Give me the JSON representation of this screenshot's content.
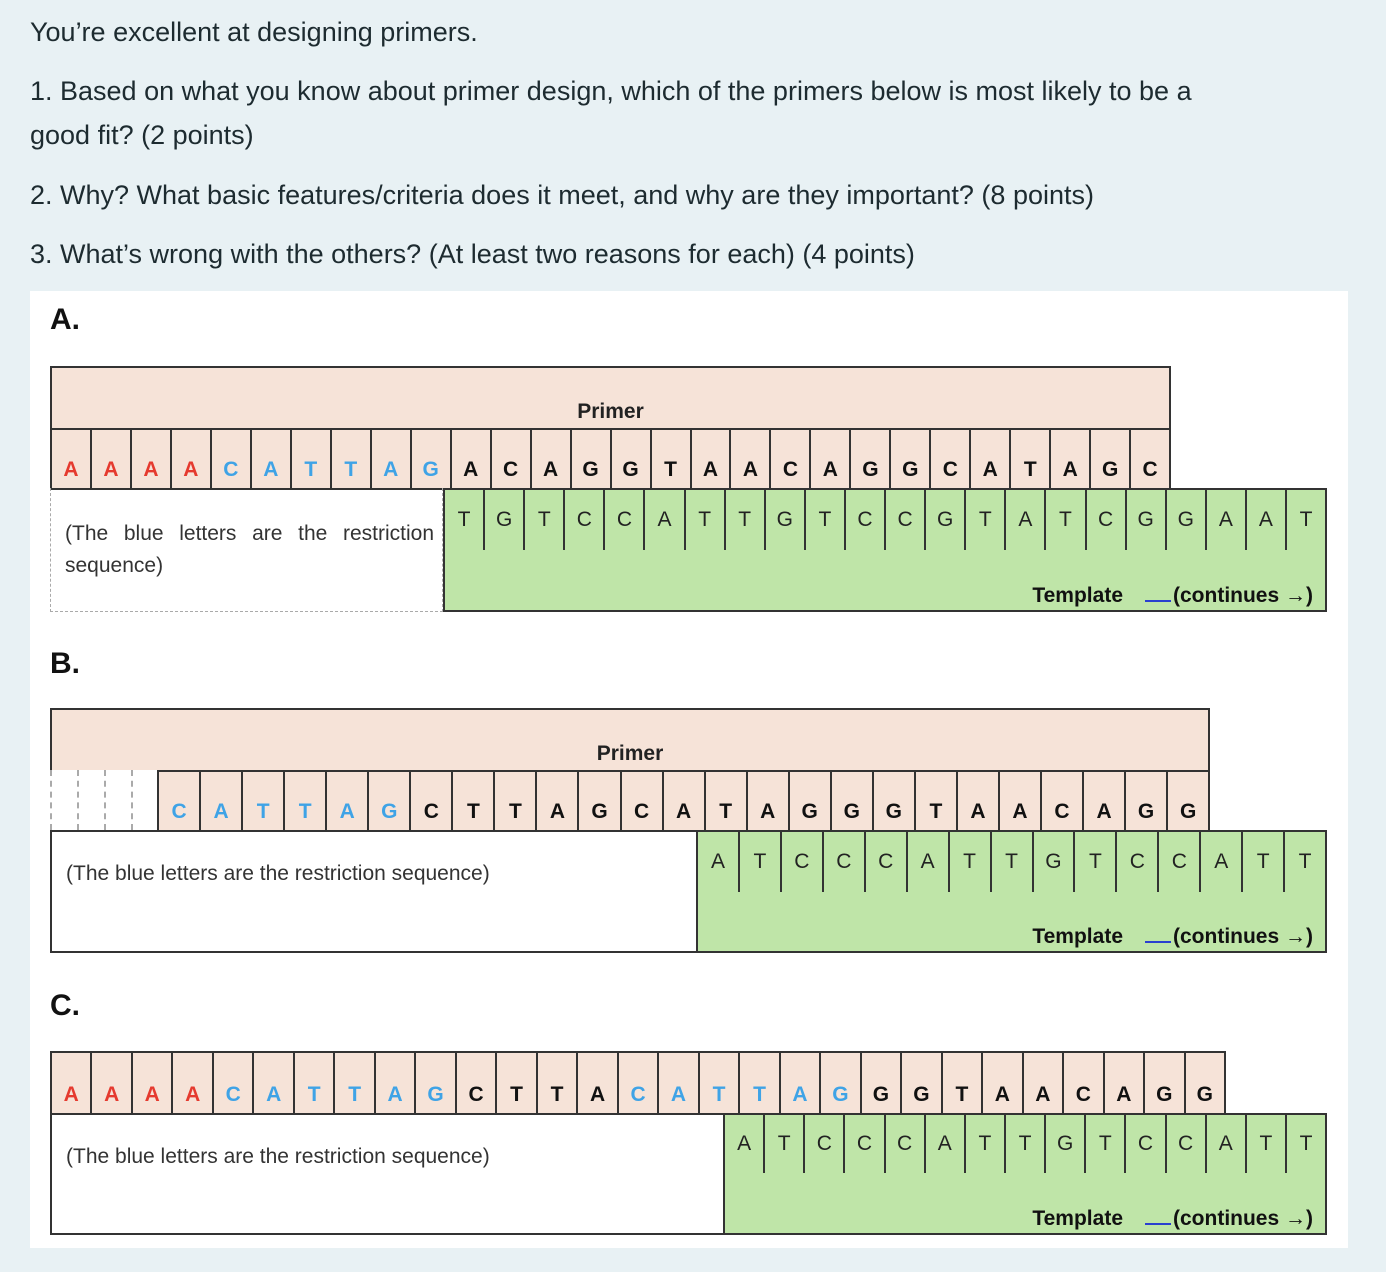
{
  "questions": {
    "intro": "You’re excellent at designing primers.",
    "q1_line1": "1. Based on what you know about primer design, which of the primers below is most likely to be a",
    "q1_line2": "good fit? (2 points)",
    "q2": "2. Why? What basic features/criteria does it meet, and why are they important? (8 points)",
    "q3": "3. What’s wrong with the others? (At least two reasons for each) (4 points)"
  },
  "colors": {
    "background": "#e8f1f4",
    "primer_fill": "#f6e3d8",
    "template_fill": "#bfe5a8",
    "overhang_red": "#e53a2f",
    "restriction_blue": "#3fa3e6"
  },
  "legend": {
    "primer_label": "Primer",
    "template_label": "Template",
    "continues_label": "(continues →)",
    "note": "(The blue letters are the restriction sequence)"
  },
  "options": {
    "A": {
      "label": "A.",
      "primer": [
        {
          "b": "A",
          "c": "red"
        },
        {
          "b": "A",
          "c": "red"
        },
        {
          "b": "A",
          "c": "red"
        },
        {
          "b": "A",
          "c": "red"
        },
        {
          "b": "C",
          "c": "blue"
        },
        {
          "b": "A",
          "c": "blue"
        },
        {
          "b": "T",
          "c": "blue"
        },
        {
          "b": "T",
          "c": "blue"
        },
        {
          "b": "A",
          "c": "blue"
        },
        {
          "b": "G",
          "c": "blue"
        },
        {
          "b": "A",
          "c": "black"
        },
        {
          "b": "C",
          "c": "black"
        },
        {
          "b": "A",
          "c": "black"
        },
        {
          "b": "G",
          "c": "black"
        },
        {
          "b": "G",
          "c": "black"
        },
        {
          "b": "T",
          "c": "black"
        },
        {
          "b": "A",
          "c": "black"
        },
        {
          "b": "A",
          "c": "black"
        },
        {
          "b": "C",
          "c": "black"
        },
        {
          "b": "A",
          "c": "black"
        },
        {
          "b": "G",
          "c": "black"
        },
        {
          "b": "G",
          "c": "black"
        },
        {
          "b": "C",
          "c": "black"
        },
        {
          "b": "A",
          "c": "black"
        },
        {
          "b": "T",
          "c": "black"
        },
        {
          "b": "A",
          "c": "black"
        },
        {
          "b": "G",
          "c": "black"
        },
        {
          "b": "C",
          "c": "black"
        }
      ],
      "template": [
        "T",
        "G",
        "T",
        "C",
        "C",
        "A",
        "T",
        "T",
        "G",
        "T",
        "C",
        "C",
        "G",
        "T",
        "A",
        "T",
        "C",
        "G",
        "G",
        "A",
        "A",
        "T"
      ]
    },
    "B": {
      "label": "B.",
      "primer": [
        {
          "b": "C",
          "c": "blue"
        },
        {
          "b": "A",
          "c": "blue"
        },
        {
          "b": "T",
          "c": "blue"
        },
        {
          "b": "T",
          "c": "blue"
        },
        {
          "b": "A",
          "c": "blue"
        },
        {
          "b": "G",
          "c": "blue"
        },
        {
          "b": "C",
          "c": "black"
        },
        {
          "b": "T",
          "c": "black"
        },
        {
          "b": "T",
          "c": "black"
        },
        {
          "b": "A",
          "c": "black"
        },
        {
          "b": "G",
          "c": "black"
        },
        {
          "b": "C",
          "c": "black"
        },
        {
          "b": "A",
          "c": "black"
        },
        {
          "b": "T",
          "c": "black"
        },
        {
          "b": "A",
          "c": "black"
        },
        {
          "b": "G",
          "c": "black"
        },
        {
          "b": "G",
          "c": "black"
        },
        {
          "b": "G",
          "c": "black"
        },
        {
          "b": "T",
          "c": "black"
        },
        {
          "b": "A",
          "c": "black"
        },
        {
          "b": "A",
          "c": "black"
        },
        {
          "b": "C",
          "c": "black"
        },
        {
          "b": "A",
          "c": "black"
        },
        {
          "b": "G",
          "c": "black"
        },
        {
          "b": "G",
          "c": "black"
        }
      ],
      "template": [
        "A",
        "T",
        "C",
        "C",
        "C",
        "A",
        "T",
        "T",
        "G",
        "T",
        "C",
        "C",
        "A",
        "T",
        "T"
      ]
    },
    "C": {
      "label": "C.",
      "primer": [
        {
          "b": "A",
          "c": "red"
        },
        {
          "b": "A",
          "c": "red"
        },
        {
          "b": "A",
          "c": "red"
        },
        {
          "b": "A",
          "c": "red"
        },
        {
          "b": "C",
          "c": "blue"
        },
        {
          "b": "A",
          "c": "blue"
        },
        {
          "b": "T",
          "c": "blue"
        },
        {
          "b": "T",
          "c": "blue"
        },
        {
          "b": "A",
          "c": "blue"
        },
        {
          "b": "G",
          "c": "blue"
        },
        {
          "b": "C",
          "c": "black"
        },
        {
          "b": "T",
          "c": "black"
        },
        {
          "b": "T",
          "c": "black"
        },
        {
          "b": "A",
          "c": "black"
        },
        {
          "b": "C",
          "c": "blue"
        },
        {
          "b": "A",
          "c": "blue"
        },
        {
          "b": "T",
          "c": "blue"
        },
        {
          "b": "T",
          "c": "blue"
        },
        {
          "b": "A",
          "c": "blue"
        },
        {
          "b": "G",
          "c": "blue"
        },
        {
          "b": "G",
          "c": "black"
        },
        {
          "b": "G",
          "c": "black"
        },
        {
          "b": "T",
          "c": "black"
        },
        {
          "b": "A",
          "c": "black"
        },
        {
          "b": "A",
          "c": "black"
        },
        {
          "b": "C",
          "c": "black"
        },
        {
          "b": "A",
          "c": "black"
        },
        {
          "b": "G",
          "c": "black"
        },
        {
          "b": "G",
          "c": "black"
        }
      ],
      "template": [
        "A",
        "T",
        "C",
        "C",
        "C",
        "A",
        "T",
        "T",
        "G",
        "T",
        "C",
        "C",
        "A",
        "T",
        "T"
      ]
    }
  }
}
